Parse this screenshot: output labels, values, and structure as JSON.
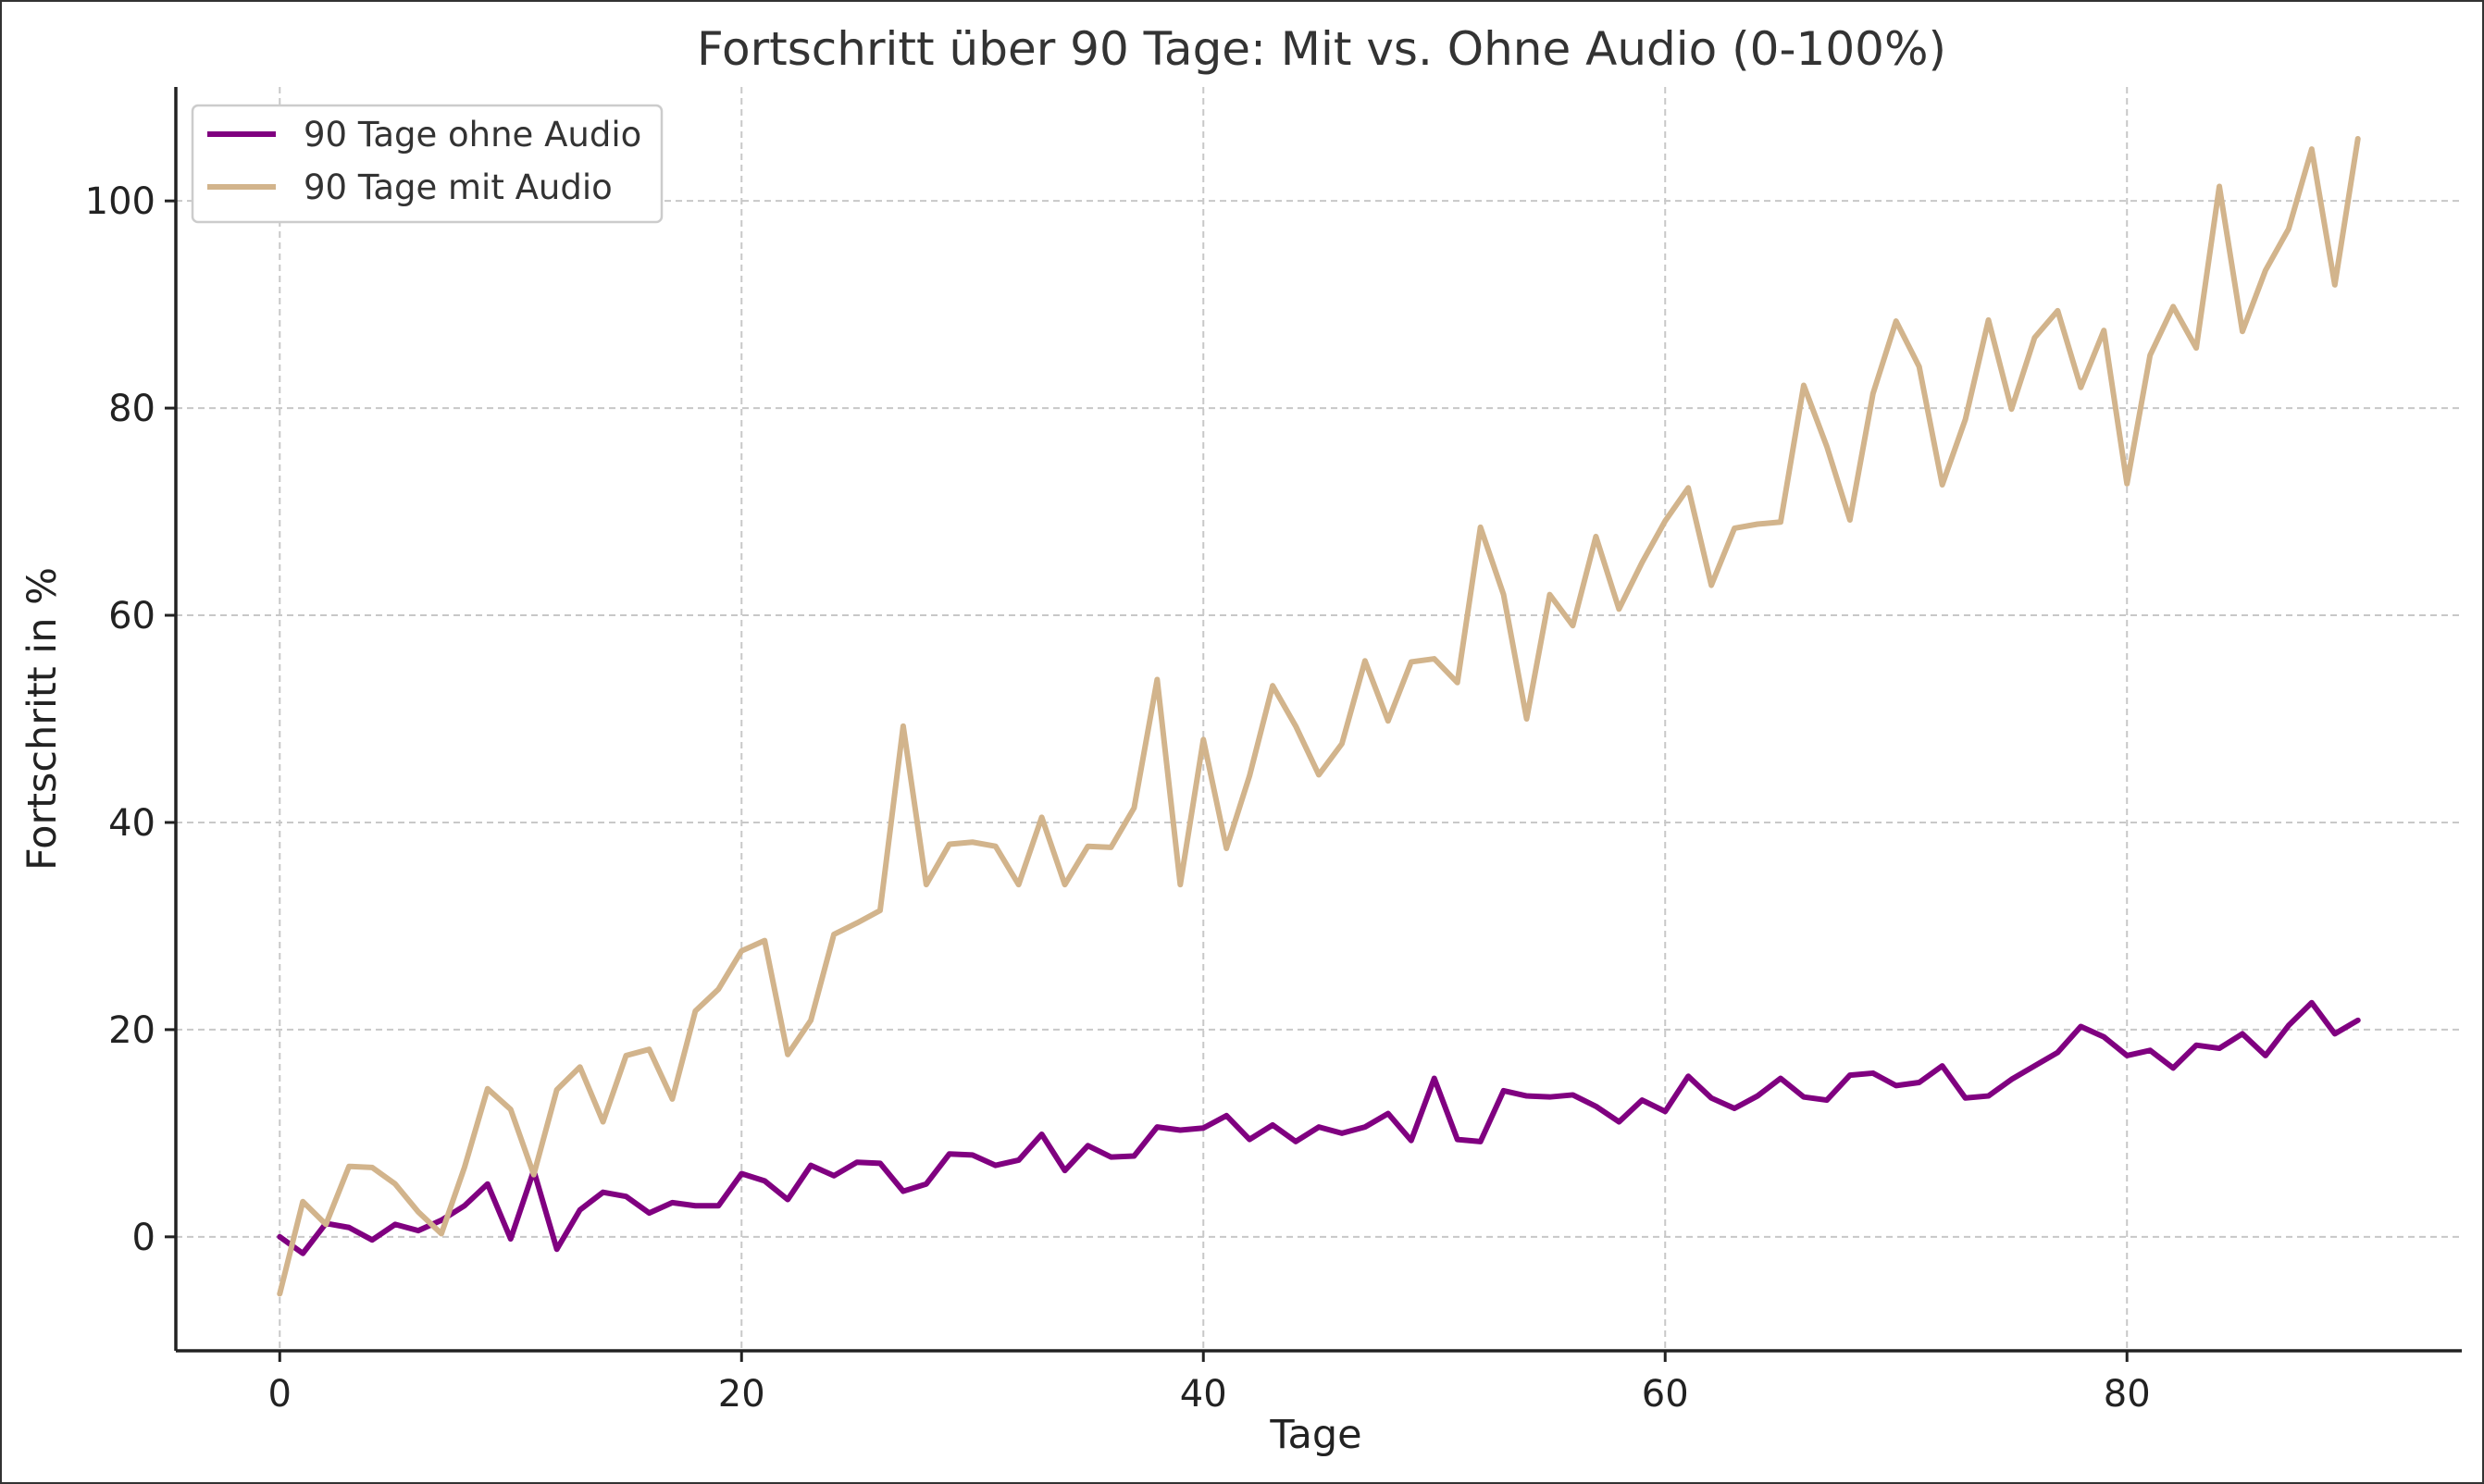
{
  "chart_data": {
    "type": "line",
    "title": "Fortschritt über 90 Tage: Mit vs. Ohne Audio (0-100%)",
    "xlabel": "Tage",
    "ylabel": "Fortschritt in %",
    "xlim": [
      -4.5,
      94.5
    ],
    "ylim": [
      -11,
      111
    ],
    "xticks": [
      0,
      20,
      40,
      60,
      80
    ],
    "yticks": [
      0,
      20,
      40,
      60,
      80,
      100
    ],
    "grid": true,
    "legend_position": "top-left",
    "series": [
      {
        "name": "90 Tage ohne Audio",
        "color": "#800080",
        "x": [
          0,
          1,
          2,
          3,
          4,
          5,
          6,
          7,
          8,
          9,
          10,
          11,
          12,
          13,
          14,
          15,
          16,
          17,
          18,
          19,
          20,
          21,
          22,
          23,
          24,
          25,
          26,
          27,
          28,
          29,
          30,
          31,
          32,
          33,
          34,
          35,
          36,
          37,
          38,
          39,
          40,
          41,
          42,
          43,
          44,
          45,
          46,
          47,
          48,
          49,
          50,
          51,
          52,
          53,
          54,
          55,
          56,
          57,
          58,
          59,
          60,
          61,
          62,
          63,
          64,
          65,
          66,
          67,
          68,
          69,
          70,
          71,
          72,
          73,
          74,
          75,
          76,
          77,
          78,
          79,
          80,
          81,
          82,
          83,
          84,
          85,
          86,
          87,
          88,
          89,
          90
        ],
        "values": [
          0.0,
          -1.6,
          1.3,
          0.9,
          -0.3,
          1.2,
          0.6,
          1.6,
          3.0,
          5.1,
          -0.2,
          6.4,
          -1.2,
          2.6,
          4.3,
          3.9,
          2.3,
          3.3,
          3.0,
          3.0,
          6.1,
          5.4,
          3.6,
          6.9,
          5.9,
          7.2,
          7.1,
          4.4,
          5.1,
          8.0,
          7.9,
          6.9,
          7.4,
          9.9,
          6.4,
          8.8,
          7.7,
          7.8,
          10.6,
          10.3,
          10.5,
          11.7,
          9.4,
          10.8,
          9.2,
          10.6,
          10.0,
          10.6,
          11.9,
          9.3,
          15.3,
          9.4,
          9.2,
          14.1,
          13.6,
          13.5,
          13.7,
          12.6,
          11.1,
          13.2,
          12.1,
          15.5,
          13.4,
          12.4,
          13.6,
          15.3,
          13.5,
          13.2,
          15.6,
          15.8,
          14.6,
          14.9,
          16.5,
          13.4,
          13.6,
          15.2,
          16.5,
          17.8,
          20.3,
          19.3,
          17.5,
          18.0,
          16.3,
          18.5,
          18.2,
          19.6,
          17.5,
          20.4,
          22.6,
          19.6,
          20.9
        ]
      },
      {
        "name": "90 Tage mit Audio",
        "color": "#D2B48C",
        "x": [
          0,
          1,
          2,
          3,
          4,
          5,
          6,
          7,
          8,
          9,
          10,
          11,
          12,
          13,
          14,
          15,
          16,
          17,
          18,
          19,
          20,
          21,
          22,
          23,
          24,
          25,
          26,
          27,
          28,
          29,
          30,
          31,
          32,
          33,
          34,
          35,
          36,
          37,
          38,
          39,
          40,
          41,
          42,
          43,
          44,
          45,
          46,
          47,
          48,
          49,
          50,
          51,
          52,
          53,
          54,
          55,
          56,
          57,
          58,
          59,
          60,
          61,
          62,
          63,
          64,
          65,
          66,
          67,
          68,
          69,
          70,
          71,
          72,
          73,
          74,
          75,
          76,
          77,
          78,
          79,
          80,
          81,
          82,
          83,
          84,
          85,
          86,
          87,
          88,
          89,
          90
        ],
        "values": [
          -5.5,
          3.4,
          1.2,
          6.8,
          6.7,
          5.1,
          2.4,
          0.3,
          6.7,
          14.3,
          12.3,
          6.0,
          14.2,
          16.4,
          11.1,
          17.5,
          18.1,
          13.3,
          21.8,
          23.9,
          27.6,
          28.6,
          17.6,
          20.9,
          29.2,
          30.3,
          31.5,
          49.3,
          34.0,
          37.9,
          38.1,
          37.7,
          34.0,
          40.5,
          34.0,
          37.7,
          37.6,
          41.4,
          53.8,
          34.0,
          48.0,
          37.5,
          44.5,
          53.2,
          49.3,
          44.6,
          47.6,
          55.6,
          49.8,
          55.5,
          55.8,
          53.5,
          68.5,
          62.0,
          50.0,
          62.0,
          59.0,
          67.6,
          60.6,
          65.1,
          69.1,
          72.3,
          62.9,
          68.4,
          68.8,
          69.0,
          82.2,
          76.3,
          69.2,
          81.4,
          88.4,
          84.0,
          72.6,
          78.9,
          88.5,
          79.9,
          86.8,
          89.4,
          82.0,
          87.5,
          72.7,
          85.1,
          89.8,
          85.8,
          101.4,
          87.4,
          93.3,
          97.3,
          105.0,
          91.9,
          106.0
        ]
      }
    ]
  }
}
